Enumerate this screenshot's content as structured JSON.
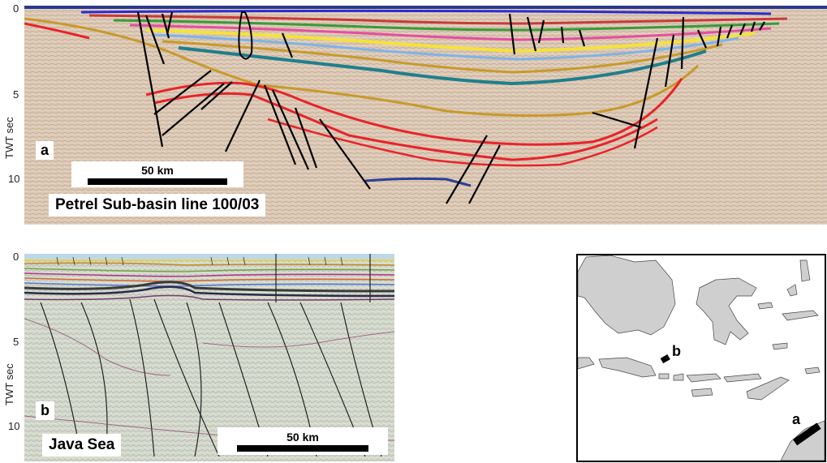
{
  "panel_a": {
    "tag": "a",
    "name": "Petrel Sub-basin line 100/03",
    "scale_label": "50 km",
    "y_axis_label": "TWT sec",
    "y_ticks": [
      "0",
      "5",
      "10"
    ]
  },
  "panel_b": {
    "tag": "b",
    "name": "Java Sea",
    "scale_label": "50 km",
    "y_axis_label": "TWT sec",
    "y_ticks": [
      "0",
      "5",
      "10"
    ]
  },
  "location_map": {
    "marker_a": "a",
    "marker_b": "b",
    "land_color": "#cfcfcf",
    "sea_color": "#ffffff"
  },
  "colors": {
    "seismic_a_bg": "#dcc9b6",
    "seismic_b_bg": "#d3dccb",
    "fault": "#000000",
    "horizon_red": "#e8242a",
    "horizon_gold": "#c79a2a",
    "horizon_teal": "#1f7f8c",
    "horizon_yellow": "#f4e23a",
    "horizon_blue": "#2a3f9a"
  }
}
